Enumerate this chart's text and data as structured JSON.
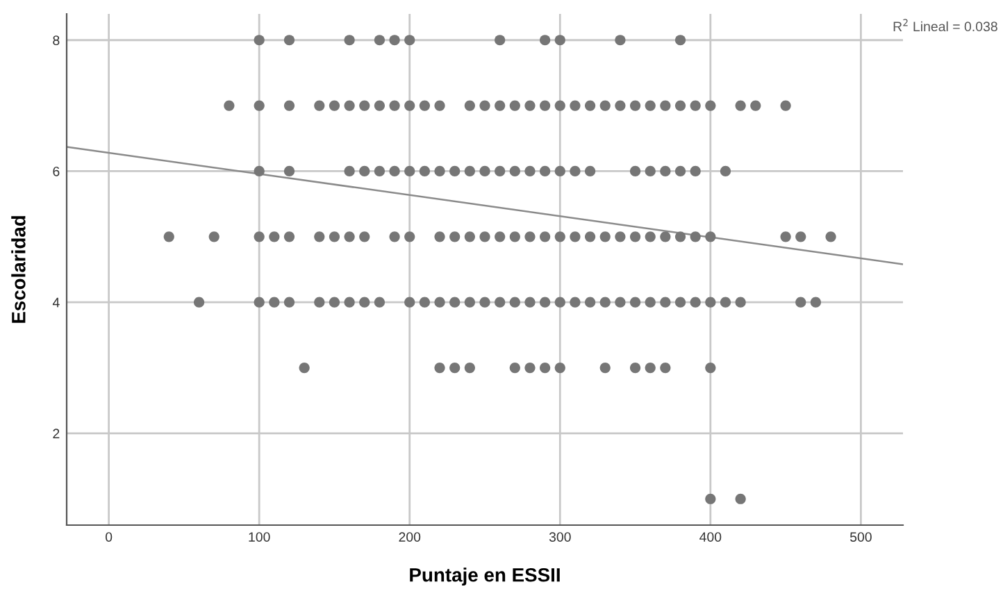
{
  "chart_data": {
    "type": "scatter",
    "xlabel": "Puntaje en ESSII",
    "ylabel": "Escolaridad",
    "xlim": [
      -28,
      528
    ],
    "ylim": [
      0.6,
      8.4
    ],
    "xticks": [
      0,
      100,
      200,
      300,
      400,
      500
    ],
    "yticks": [
      2,
      4,
      6,
      8
    ],
    "grid": true,
    "marker": "circle",
    "legend": false,
    "annotations": [
      "R$^{2}$ Lineal = 0.038"
    ],
    "series": [
      {
        "color": "#767676",
        "x": [
          100,
          120,
          160,
          180,
          190,
          200,
          260,
          290,
          300,
          340,
          380
        ],
        "values": [
          8,
          8,
          8,
          8,
          8,
          8,
          8,
          8,
          8,
          8,
          8
        ]
      },
      {
        "color": "#767676",
        "x": [
          80,
          100,
          120,
          140,
          150,
          160,
          170,
          180,
          190,
          200,
          210,
          220,
          240,
          250,
          260,
          270,
          280,
          290,
          300,
          310,
          320,
          330,
          340,
          350,
          360,
          370,
          380,
          390,
          400,
          420,
          430,
          450
        ],
        "values": [
          7,
          7,
          7,
          7,
          7,
          7,
          7,
          7,
          7,
          7,
          7,
          7,
          7,
          7,
          7,
          7,
          7,
          7,
          7,
          7,
          7,
          7,
          7,
          7,
          7,
          7,
          7,
          7,
          7,
          7,
          7,
          7
        ]
      },
      {
        "color": "#767676",
        "x": [
          100,
          120,
          160,
          170,
          180,
          190,
          200,
          210,
          220,
          230,
          240,
          250,
          260,
          270,
          280,
          290,
          300,
          310,
          320,
          350,
          360,
          370,
          380,
          390,
          410
        ],
        "values": [
          6,
          6,
          6,
          6,
          6,
          6,
          6,
          6,
          6,
          6,
          6,
          6,
          6,
          6,
          6,
          6,
          6,
          6,
          6,
          6,
          6,
          6,
          6,
          6,
          6
        ]
      },
      {
        "color": "#767676",
        "x": [
          40,
          70,
          100,
          110,
          120,
          140,
          150,
          160,
          170,
          190,
          200,
          220,
          230,
          240,
          250,
          260,
          270,
          280,
          290,
          300,
          310,
          320,
          330,
          340,
          350,
          360,
          370,
          380,
          390,
          400,
          450,
          460,
          480
        ],
        "values": [
          5,
          5,
          5,
          5,
          5,
          5,
          5,
          5,
          5,
          5,
          5,
          5,
          5,
          5,
          5,
          5,
          5,
          5,
          5,
          5,
          5,
          5,
          5,
          5,
          5,
          5,
          5,
          5,
          5,
          5,
          5,
          5,
          5
        ]
      },
      {
        "color": "#767676",
        "x": [
          60,
          100,
          110,
          120,
          140,
          150,
          160,
          170,
          180,
          200,
          210,
          220,
          230,
          240,
          250,
          260,
          270,
          280,
          290,
          300,
          310,
          320,
          330,
          340,
          350,
          360,
          370,
          380,
          390,
          400,
          410,
          420,
          460,
          470
        ],
        "values": [
          4,
          4,
          4,
          4,
          4,
          4,
          4,
          4,
          4,
          4,
          4,
          4,
          4,
          4,
          4,
          4,
          4,
          4,
          4,
          4,
          4,
          4,
          4,
          4,
          4,
          4,
          4,
          4,
          4,
          4,
          4,
          4,
          4,
          4
        ]
      },
      {
        "color": "#767676",
        "x": [
          130,
          220,
          230,
          240,
          270,
          280,
          290,
          300,
          330,
          350,
          360,
          370,
          400
        ],
        "values": [
          3,
          3,
          3,
          3,
          3,
          3,
          3,
          3,
          3,
          3,
          3,
          3,
          3
        ]
      },
      {
        "color": "#767676",
        "x": [
          400,
          420
        ],
        "values": [
          1,
          1
        ]
      },
      {
        "type": "line",
        "marker": "none",
        "color": "#8a8a8a",
        "x": [
          -28,
          528
        ],
        "values": [
          6.37,
          4.58
        ]
      }
    ]
  }
}
